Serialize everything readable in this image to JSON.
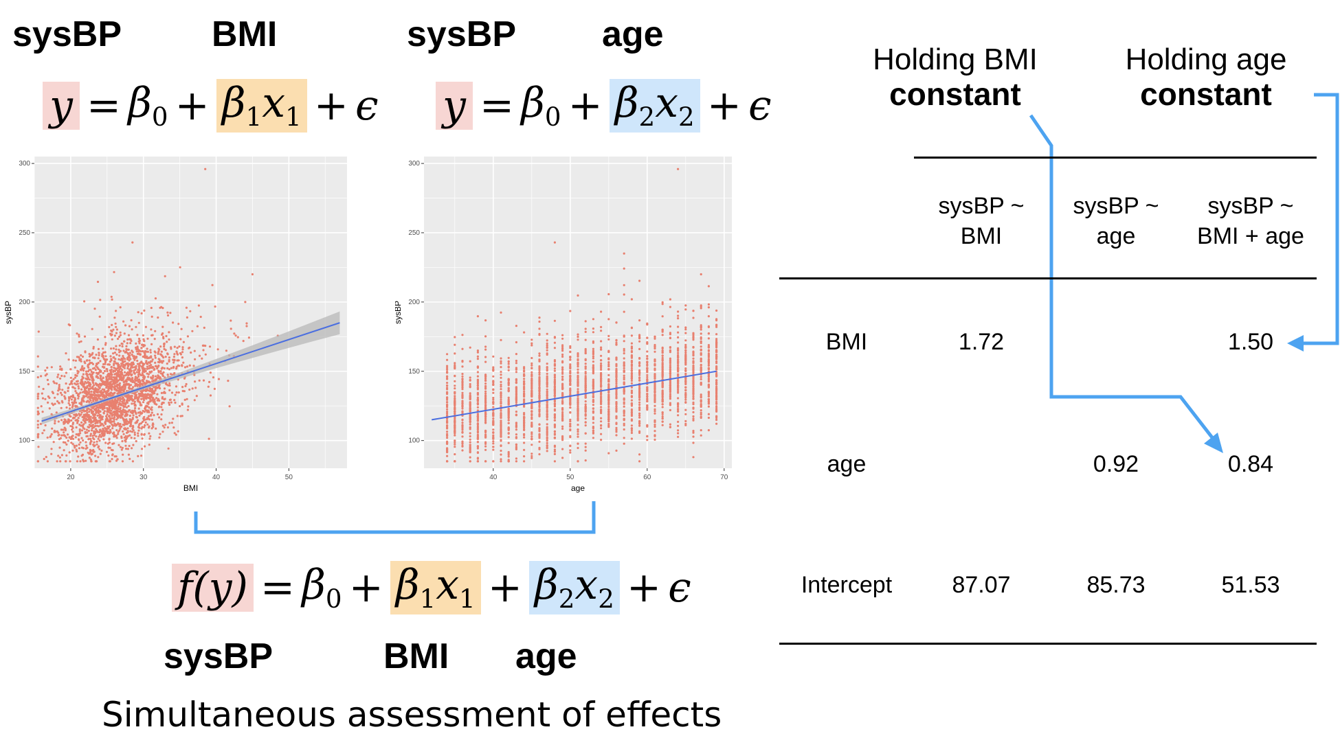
{
  "top_left": {
    "var_y": "sysBP",
    "var_x": "BMI"
  },
  "top_right": {
    "var_y": "sysBP",
    "var_x": "age"
  },
  "eq1": {
    "y": "y",
    "eq": "=",
    "b0": "β",
    "b0sub": "0",
    "plus1": "+",
    "b1": "β",
    "b1sub": "1",
    "x1": "x",
    "x1sub": "1",
    "plus2": "+",
    "eps": "ϵ"
  },
  "eq2": {
    "y": "y",
    "eq": "=",
    "b0": "β",
    "b0sub": "0",
    "plus1": "+",
    "b2": "β",
    "b2sub": "2",
    "x2": "x",
    "x2sub": "2",
    "plus2": "+",
    "eps": "ϵ"
  },
  "eq3": {
    "fy": "f(y)",
    "eq": "=",
    "b0": "β",
    "b0sub": "0",
    "plus1": "+",
    "b1": "β",
    "b1sub": "1",
    "x1": "x",
    "x1sub": "1",
    "plus2": "+",
    "b2": "β",
    "b2sub": "2",
    "x2": "x",
    "x2sub": "2",
    "plus3": "+",
    "eps": "ϵ"
  },
  "bottom_labels": {
    "y": "sysBP",
    "x1": "BMI",
    "x2": "age"
  },
  "subtitle": "Simultaneous assessment of effects",
  "holding": {
    "bmi": {
      "line1": "Holding BMI",
      "line2": "constant"
    },
    "age": {
      "line1": "Holding age",
      "line2": "constant"
    }
  },
  "table": {
    "headers": [
      {
        "line1": "sysBP ~",
        "line2": "BMI"
      },
      {
        "line1": "sysBP ~",
        "line2": "age"
      },
      {
        "line1": "sysBP ~",
        "line2": "BMI + age"
      }
    ],
    "rows": [
      {
        "name": "BMI",
        "values": [
          "1.72",
          "",
          "1.50"
        ]
      },
      {
        "name": "age",
        "values": [
          "",
          "0.92",
          "0.84"
        ]
      },
      {
        "name": "Intercept",
        "values": [
          "87.07",
          "85.73",
          "51.53"
        ]
      }
    ]
  },
  "colors": {
    "points": "#e8806f",
    "line": "#4a6ee0",
    "band": "#b8b8b8",
    "panel": "#ebebeb",
    "arrow": "#4da3f0"
  },
  "chart_data": [
    {
      "type": "scatter",
      "title": "",
      "xlabel": "BMI",
      "ylabel": "sysBP",
      "xlim": [
        15,
        58
      ],
      "ylim": [
        80,
        305
      ],
      "x_ticks": [
        20,
        30,
        40,
        50
      ],
      "y_ticks": [
        100,
        150,
        200,
        250,
        300
      ],
      "grid": true,
      "fit_line": {
        "x": [
          16,
          57
        ],
        "y": [
          114,
          185
        ]
      },
      "notable_points": [
        {
          "x": 38.5,
          "y": 296
        },
        {
          "x": 28.5,
          "y": 243
        },
        {
          "x": 45,
          "y": 220
        },
        {
          "x": 44,
          "y": 200
        }
      ]
    },
    {
      "type": "scatter",
      "title": "",
      "xlabel": "age",
      "ylabel": "sysBP",
      "xlim": [
        31,
        71
      ],
      "ylim": [
        80,
        305
      ],
      "x_ticks": [
        40,
        50,
        60,
        70
      ],
      "y_ticks": [
        100,
        150,
        200,
        250,
        300
      ],
      "grid": true,
      "fit_line": {
        "x": [
          32,
          69
        ],
        "y": [
          115,
          150
        ]
      },
      "notable_points": [
        {
          "x": 64,
          "y": 296
        },
        {
          "x": 48,
          "y": 243
        },
        {
          "x": 67,
          "y": 220
        }
      ]
    }
  ]
}
